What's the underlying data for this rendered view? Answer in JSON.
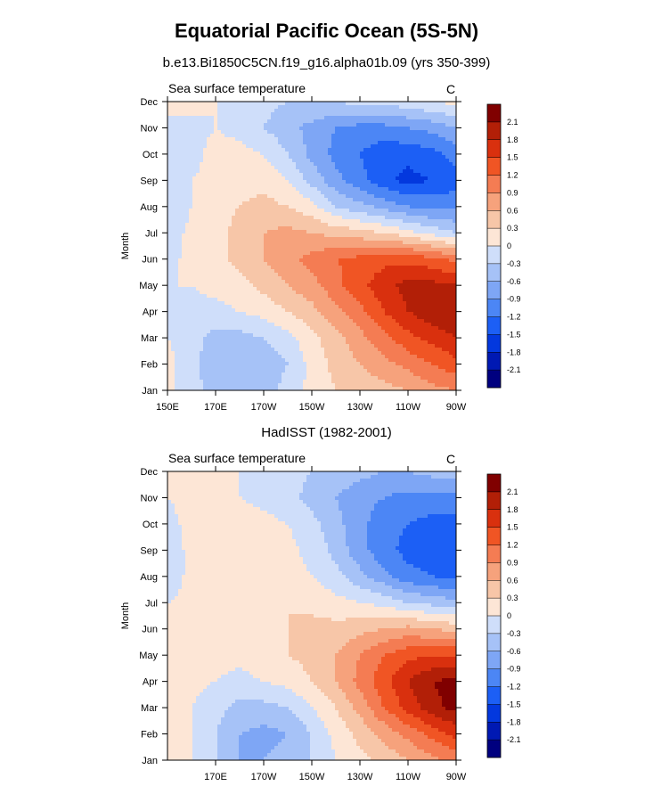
{
  "title": "Equatorial Pacific Ocean (5S-5N)",
  "subtitle": "b.e13.Bi1850C5CN.f19_g16.alpha01b.09 (yrs 350-399)",
  "palette": [
    "#00007f",
    "#0019b3",
    "#0338de",
    "#1c5ff5",
    "#4c86f5",
    "#7ea6f5",
    "#a6c2f7",
    "#cfdefa",
    "#fde6d6",
    "#f7c6a8",
    "#f6a27c",
    "#f47c53",
    "#f05524",
    "#d9300e",
    "#b21f07",
    "#800000"
  ],
  "colorbar_labels": [
    "-2.1",
    "-1.8",
    "-1.5",
    "-1.2",
    "-0.9",
    "-0.6",
    "-0.3",
    "0",
    "0.3",
    "0.6",
    "0.9",
    "1.2",
    "1.5",
    "1.8",
    "2.1"
  ],
  "chart_data": [
    {
      "type": "heatmap",
      "title": "b.e13.Bi1850C5CN.f19_g16.alpha01b.09 (yrs 350-399)",
      "left_label": "Sea surface temperature",
      "right_label": "C",
      "ylabel": "Month",
      "xlabel": "",
      "x_ticks": [
        "150E",
        "170E",
        "170W",
        "150W",
        "130W",
        "110W",
        "90W"
      ],
      "y_ticks": [
        "Jan",
        "Feb",
        "Mar",
        "Apr",
        "May",
        "Jun",
        "Jul",
        "Aug",
        "Sep",
        "Oct",
        "Nov",
        "Dec"
      ],
      "x_range": [
        "150E",
        "90W"
      ],
      "levels": [
        -2.1,
        -1.8,
        -1.5,
        -1.2,
        -0.9,
        -0.6,
        -0.3,
        0,
        0.3,
        0.6,
        0.9,
        1.2,
        1.5,
        1.8,
        2.1
      ],
      "x": [
        150,
        160,
        170,
        180,
        190,
        200,
        210,
        220,
        230,
        240,
        250,
        260,
        270
      ],
      "months": [
        "Jan",
        "Feb",
        "Mar",
        "Apr",
        "May",
        "Jun",
        "Jul",
        "Aug",
        "Sep",
        "Oct",
        "Nov",
        "Dec"
      ],
      "values": [
        [
          0.1,
          -0.2,
          -0.4,
          -0.5,
          -0.4,
          -0.2,
          0.1,
          0.3,
          0.4,
          0.5,
          0.6,
          0.8,
          0.9
        ],
        [
          0.1,
          -0.2,
          -0.5,
          -0.6,
          -0.5,
          -0.3,
          0.1,
          0.4,
          0.6,
          0.8,
          1.0,
          1.2,
          1.4
        ],
        [
          0.0,
          -0.2,
          -0.4,
          -0.4,
          -0.3,
          -0.1,
          0.2,
          0.5,
          0.8,
          1.1,
          1.4,
          1.6,
          1.8
        ],
        [
          0.0,
          -0.1,
          -0.1,
          0.0,
          0.1,
          0.3,
          0.5,
          0.8,
          1.1,
          1.5,
          1.8,
          2.0,
          2.1
        ],
        [
          0.0,
          0.0,
          0.1,
          0.2,
          0.4,
          0.6,
          0.8,
          1.1,
          1.4,
          1.7,
          1.9,
          1.9,
          1.8
        ],
        [
          -0.1,
          0.1,
          0.2,
          0.4,
          0.6,
          0.8,
          1.0,
          1.2,
          1.3,
          1.4,
          1.4,
          1.3,
          1.1
        ],
        [
          -0.2,
          0.1,
          0.2,
          0.4,
          0.6,
          0.7,
          0.6,
          0.5,
          0.4,
          0.3,
          0.1,
          -0.1,
          -0.3
        ],
        [
          -0.3,
          0.0,
          0.2,
          0.3,
          0.4,
          0.3,
          0.1,
          -0.3,
          -0.5,
          -0.7,
          -0.9,
          -1.0,
          -1.0
        ],
        [
          -0.3,
          0.0,
          0.1,
          0.2,
          0.2,
          0.0,
          -0.4,
          -0.8,
          -1.1,
          -1.4,
          -1.6,
          -1.5,
          -1.3
        ],
        [
          -0.2,
          -0.1,
          0.1,
          0.1,
          0.0,
          -0.3,
          -0.7,
          -1.0,
          -1.2,
          -1.4,
          -1.4,
          -1.3,
          -1.1
        ],
        [
          -0.1,
          -0.1,
          0.0,
          -0.1,
          -0.3,
          -0.5,
          -0.7,
          -0.9,
          -1.0,
          -1.0,
          -0.9,
          -0.8,
          -0.6
        ],
        [
          0.1,
          0.1,
          0.0,
          -0.1,
          -0.2,
          -0.3,
          -0.3,
          -0.3,
          -0.2,
          -0.2,
          -0.1,
          0.0,
          0.1
        ]
      ]
    },
    {
      "type": "heatmap",
      "title": "HadISST (1982-2001)",
      "left_label": "Sea surface temperature",
      "right_label": "C",
      "ylabel": "Month",
      "xlabel": "",
      "x_ticks": [
        "170E",
        "170W",
        "150W",
        "130W",
        "110W",
        "90W"
      ],
      "y_ticks": [
        "Jan",
        "Feb",
        "Mar",
        "Apr",
        "May",
        "Jun",
        "Jul",
        "Aug",
        "Sep",
        "Oct",
        "Nov",
        "Dec"
      ],
      "x_range": [
        "150E",
        "90W"
      ],
      "levels": [
        -2.1,
        -1.8,
        -1.5,
        -1.2,
        -0.9,
        -0.6,
        -0.3,
        0,
        0.3,
        0.6,
        0.9,
        1.2,
        1.5,
        1.8,
        2.1
      ],
      "x": [
        150,
        160,
        170,
        180,
        190,
        200,
        210,
        220,
        230,
        240,
        250,
        260,
        270
      ],
      "months": [
        "Jan",
        "Feb",
        "Mar",
        "Apr",
        "May",
        "Jun",
        "Jul",
        "Aug",
        "Sep",
        "Oct",
        "Nov",
        "Dec"
      ],
      "values": [
        [
          0.1,
          0.0,
          -0.3,
          -0.6,
          -0.6,
          -0.5,
          -0.3,
          0.0,
          0.2,
          0.4,
          0.6,
          0.8,
          1.0
        ],
        [
          0.1,
          0.0,
          -0.3,
          -0.6,
          -0.7,
          -0.6,
          -0.3,
          0.1,
          0.4,
          0.7,
          1.0,
          1.3,
          1.6
        ],
        [
          0.1,
          0.0,
          -0.2,
          -0.4,
          -0.4,
          -0.3,
          0.0,
          0.3,
          0.7,
          1.2,
          1.6,
          2.0,
          2.2
        ],
        [
          0.1,
          0.1,
          0.0,
          -0.1,
          0.0,
          0.1,
          0.3,
          0.6,
          1.0,
          1.4,
          1.8,
          2.1,
          2.2
        ],
        [
          0.1,
          0.1,
          0.1,
          0.1,
          0.2,
          0.3,
          0.4,
          0.6,
          0.9,
          1.2,
          1.4,
          1.5,
          1.5
        ],
        [
          0.1,
          0.1,
          0.1,
          0.1,
          0.2,
          0.3,
          0.4,
          0.4,
          0.5,
          0.6,
          0.7,
          0.6,
          0.5
        ],
        [
          0.0,
          0.1,
          0.1,
          0.2,
          0.2,
          0.3,
          0.2,
          0.1,
          0.0,
          -0.1,
          -0.3,
          -0.4,
          -0.5
        ],
        [
          -0.2,
          0.1,
          0.2,
          0.2,
          0.2,
          0.1,
          0.0,
          -0.2,
          -0.5,
          -0.8,
          -1.1,
          -1.2,
          -1.3
        ],
        [
          -0.2,
          0.1,
          0.2,
          0.3,
          0.2,
          0.1,
          -0.1,
          -0.4,
          -0.8,
          -1.1,
          -1.3,
          -1.4,
          -1.5
        ],
        [
          -0.1,
          0.1,
          0.2,
          0.2,
          0.1,
          0.0,
          -0.2,
          -0.5,
          -0.8,
          -1.1,
          -1.2,
          -1.3,
          -1.3
        ],
        [
          0.0,
          0.1,
          0.1,
          0.0,
          -0.1,
          -0.2,
          -0.4,
          -0.6,
          -0.8,
          -0.9,
          -1.0,
          -1.0,
          -1.0
        ],
        [
          0.1,
          0.1,
          0.1,
          0.0,
          -0.1,
          -0.2,
          -0.3,
          -0.4,
          -0.5,
          -0.6,
          -0.6,
          -0.5,
          -0.4
        ]
      ]
    }
  ]
}
